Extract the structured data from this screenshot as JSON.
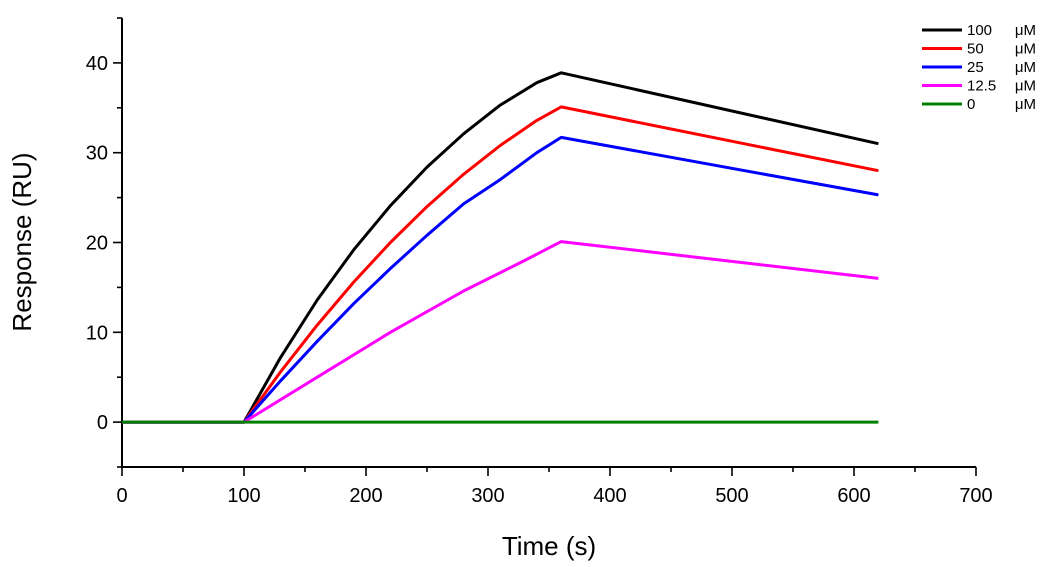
{
  "chart_data": {
    "type": "line",
    "title": "",
    "xlabel": "Time (s)",
    "ylabel": "Response (RU)",
    "xlim": [
      0,
      700
    ],
    "ylim": [
      -5,
      45
    ],
    "xticks": [
      0,
      100,
      200,
      300,
      400,
      500,
      600,
      700
    ],
    "yticks": [
      0,
      10,
      20,
      30,
      40
    ],
    "x_minor_step": 50,
    "y_minor_step": 5,
    "grid": false,
    "legend_position": "top-right",
    "association_start": 100,
    "dissociation_start": 360,
    "end_time": 620,
    "series": [
      {
        "name": "100",
        "unit": "μM",
        "color": "#000000",
        "points": [
          [
            0,
            0
          ],
          [
            100,
            0
          ],
          [
            130,
            7.2
          ],
          [
            160,
            13.6
          ],
          [
            190,
            19.2
          ],
          [
            220,
            24.1
          ],
          [
            250,
            28.4
          ],
          [
            280,
            32.1
          ],
          [
            310,
            35.3
          ],
          [
            340,
            37.8
          ],
          [
            360,
            38.9
          ],
          [
            620,
            31.0
          ]
        ]
      },
      {
        "name": "50",
        "unit": "μM",
        "color": "#ff0000",
        "points": [
          [
            0,
            0
          ],
          [
            100,
            0
          ],
          [
            130,
            5.6
          ],
          [
            160,
            10.8
          ],
          [
            190,
            15.6
          ],
          [
            220,
            20.0
          ],
          [
            250,
            24.0
          ],
          [
            280,
            27.6
          ],
          [
            310,
            30.8
          ],
          [
            340,
            33.6
          ],
          [
            360,
            35.1
          ],
          [
            620,
            28.0
          ]
        ]
      },
      {
        "name": "25",
        "unit": "μM",
        "color": "#0000ff",
        "points": [
          [
            0,
            0
          ],
          [
            100,
            0
          ],
          [
            130,
            4.6
          ],
          [
            160,
            9.0
          ],
          [
            190,
            13.2
          ],
          [
            220,
            17.1
          ],
          [
            250,
            20.8
          ],
          [
            280,
            24.3
          ],
          [
            310,
            27.0
          ],
          [
            340,
            30.0
          ],
          [
            360,
            31.7
          ],
          [
            620,
            25.3
          ]
        ]
      },
      {
        "name": "12.5",
        "unit": "μM",
        "color": "#ff00ff",
        "points": [
          [
            0,
            0
          ],
          [
            100,
            0
          ],
          [
            160,
            5.0
          ],
          [
            220,
            10.0
          ],
          [
            280,
            14.6
          ],
          [
            330,
            18.0
          ],
          [
            360,
            20.1
          ],
          [
            620,
            16.0
          ]
        ]
      },
      {
        "name": "0",
        "unit": "μM",
        "color": "#008000",
        "points": [
          [
            0,
            0
          ],
          [
            620,
            0
          ]
        ]
      }
    ]
  }
}
